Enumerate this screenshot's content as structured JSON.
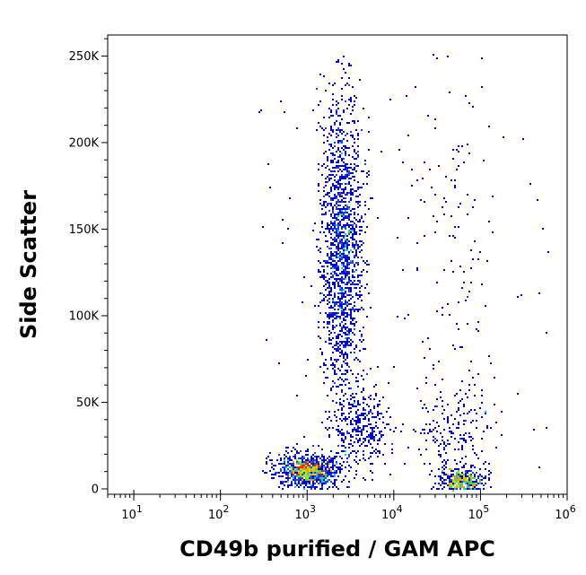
{
  "chart_data": {
    "type": "scatter",
    "style": "flow cytometry density dot plot",
    "xlabel": "CD49b purified / GAM APC",
    "ylabel": "Side Scatter",
    "x_scale": "log",
    "xlim": [
      5,
      1000000
    ],
    "ylim": [
      0,
      262144
    ],
    "x_ticks": [
      {
        "value": 10,
        "base": "10",
        "exp": "1"
      },
      {
        "value": 100,
        "base": "10",
        "exp": "2"
      },
      {
        "value": 1000,
        "base": "10",
        "exp": "3"
      },
      {
        "value": 10000,
        "base": "10",
        "exp": "4"
      },
      {
        "value": 100000,
        "base": "10",
        "exp": "5"
      },
      {
        "value": 1000000,
        "base": "10",
        "exp": "6"
      }
    ],
    "y_ticks": [
      {
        "value": 0,
        "label": "0"
      },
      {
        "value": 50000,
        "label": "50K"
      },
      {
        "value": 100000,
        "label": "100K"
      },
      {
        "value": 150000,
        "label": "150K"
      },
      {
        "value": 200000,
        "label": "200K"
      },
      {
        "value": 250000,
        "label": "250K"
      }
    ],
    "density_colors": [
      "#0000cc",
      "#1f3fe0",
      "#00c8ff",
      "#40e040",
      "#c8e000",
      "#ff9900",
      "#ff2000"
    ],
    "populations": [
      {
        "x_center": 1000,
        "x_spread_log10": 0.18,
        "y_center": 11000,
        "y_spread": 5000,
        "events": 900,
        "peak_density": 6
      },
      {
        "x_center": 60000,
        "x_spread_log10": 0.14,
        "y_center": 5000,
        "y_spread": 3500,
        "events": 320,
        "peak_density": 5
      },
      {
        "x_center": 2500,
        "x_spread_log10": 0.12,
        "y_center": 140000,
        "y_spread": 45000,
        "events": 1700,
        "peak_density": 3
      },
      {
        "x_center": 4000,
        "x_spread_log10": 0.16,
        "y_center": 35000,
        "y_spread": 12000,
        "events": 300,
        "peak_density": 2
      },
      {
        "x_center": 50000,
        "x_spread_log10": 0.25,
        "y_center": 35000,
        "y_spread": 12000,
        "events": 180,
        "peak_density": 1
      },
      {
        "x_center": 50000,
        "x_spread_log10": 0.3,
        "y_center": 150000,
        "y_spread": 55000,
        "events": 120,
        "peak_density": 1
      }
    ]
  }
}
